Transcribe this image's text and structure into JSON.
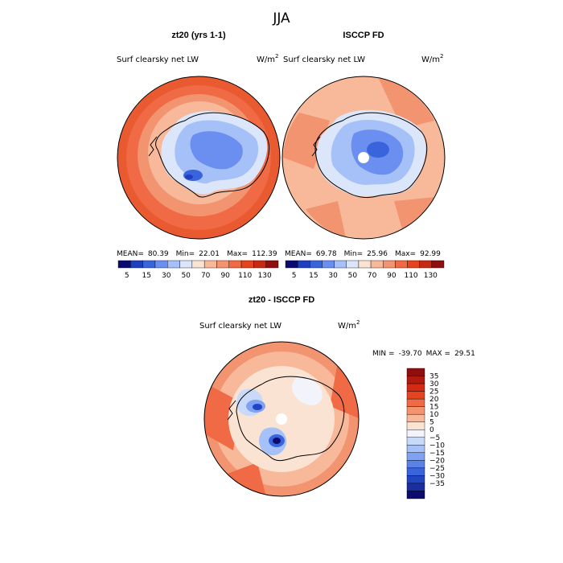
{
  "page_title": "JJA",
  "chart_data": [
    {
      "type": "heatmap",
      "projection": "south-polar-stereographic",
      "title": "zt20 (yrs 1-1)",
      "variable_label": "Surf clearsky net LW",
      "units_label": "W/m",
      "units_exponent": "2",
      "stats": {
        "mean_label": "MEAN=",
        "mean": "80.39",
        "min_label": "Min=",
        "min": "22.01",
        "max_label": "Max=",
        "max": "112.39"
      },
      "colorbar_ticks": [
        "5",
        "15",
        "30",
        "50",
        "70",
        "90",
        "110",
        "130"
      ],
      "colorbar_colors": [
        "#0b0b70",
        "#1f3fbf",
        "#3a64dc",
        "#6b8ff0",
        "#a6c1f7",
        "#dbe6fb",
        "#fbe3d3",
        "#f7b99a",
        "#f39470",
        "#ef6a45",
        "#e5441f",
        "#c72a12",
        "#8f0e0e"
      ],
      "colorbar_position": "bottom"
    },
    {
      "type": "heatmap",
      "projection": "south-polar-stereographic",
      "title": "ISCCP FD",
      "variable_label": "Surf clearsky net LW",
      "units_label": "W/m",
      "units_exponent": "2",
      "stats": {
        "mean_label": "MEAN=",
        "mean": "69.78",
        "min_label": "Min=",
        "min": "25.96",
        "max_label": "Max=",
        "max": "92.99"
      },
      "colorbar_ticks": [
        "5",
        "15",
        "30",
        "50",
        "70",
        "90",
        "110",
        "130"
      ],
      "colorbar_colors": [
        "#0b0b70",
        "#1f3fbf",
        "#3a64dc",
        "#6b8ff0",
        "#a6c1f7",
        "#dbe6fb",
        "#fbe3d3",
        "#f7b99a",
        "#f39470",
        "#ef6a45",
        "#e5441f",
        "#c72a12",
        "#8f0e0e"
      ],
      "colorbar_position": "bottom"
    },
    {
      "type": "heatmap",
      "projection": "south-polar-stereographic",
      "title": "zt20 - ISCCP FD",
      "variable_label": "Surf clearsky net LW",
      "units_label": "W/m",
      "units_exponent": "2",
      "stats": {
        "min_label": "MIN =",
        "min": "-39.70",
        "max_label": "MAX =",
        "max": "29.51"
      },
      "colorbar_ticks": [
        "35",
        "30",
        "25",
        "20",
        "15",
        "10",
        "5",
        "0",
        "−5",
        "−10",
        "−15",
        "−20",
        "−25",
        "−30",
        "−35"
      ],
      "colorbar_colors": [
        "#8f0e0e",
        "#b31a0f",
        "#d42a14",
        "#e5441f",
        "#ef6a45",
        "#f39470",
        "#f7b99a",
        "#fbe3d3",
        "#f3f4fb",
        "#c9daf8",
        "#a6c1f7",
        "#7fa2f2",
        "#5a82e8",
        "#3a64dc",
        "#2345c4",
        "#1a2ea0",
        "#0b0b70"
      ],
      "colorbar_position": "right"
    }
  ]
}
